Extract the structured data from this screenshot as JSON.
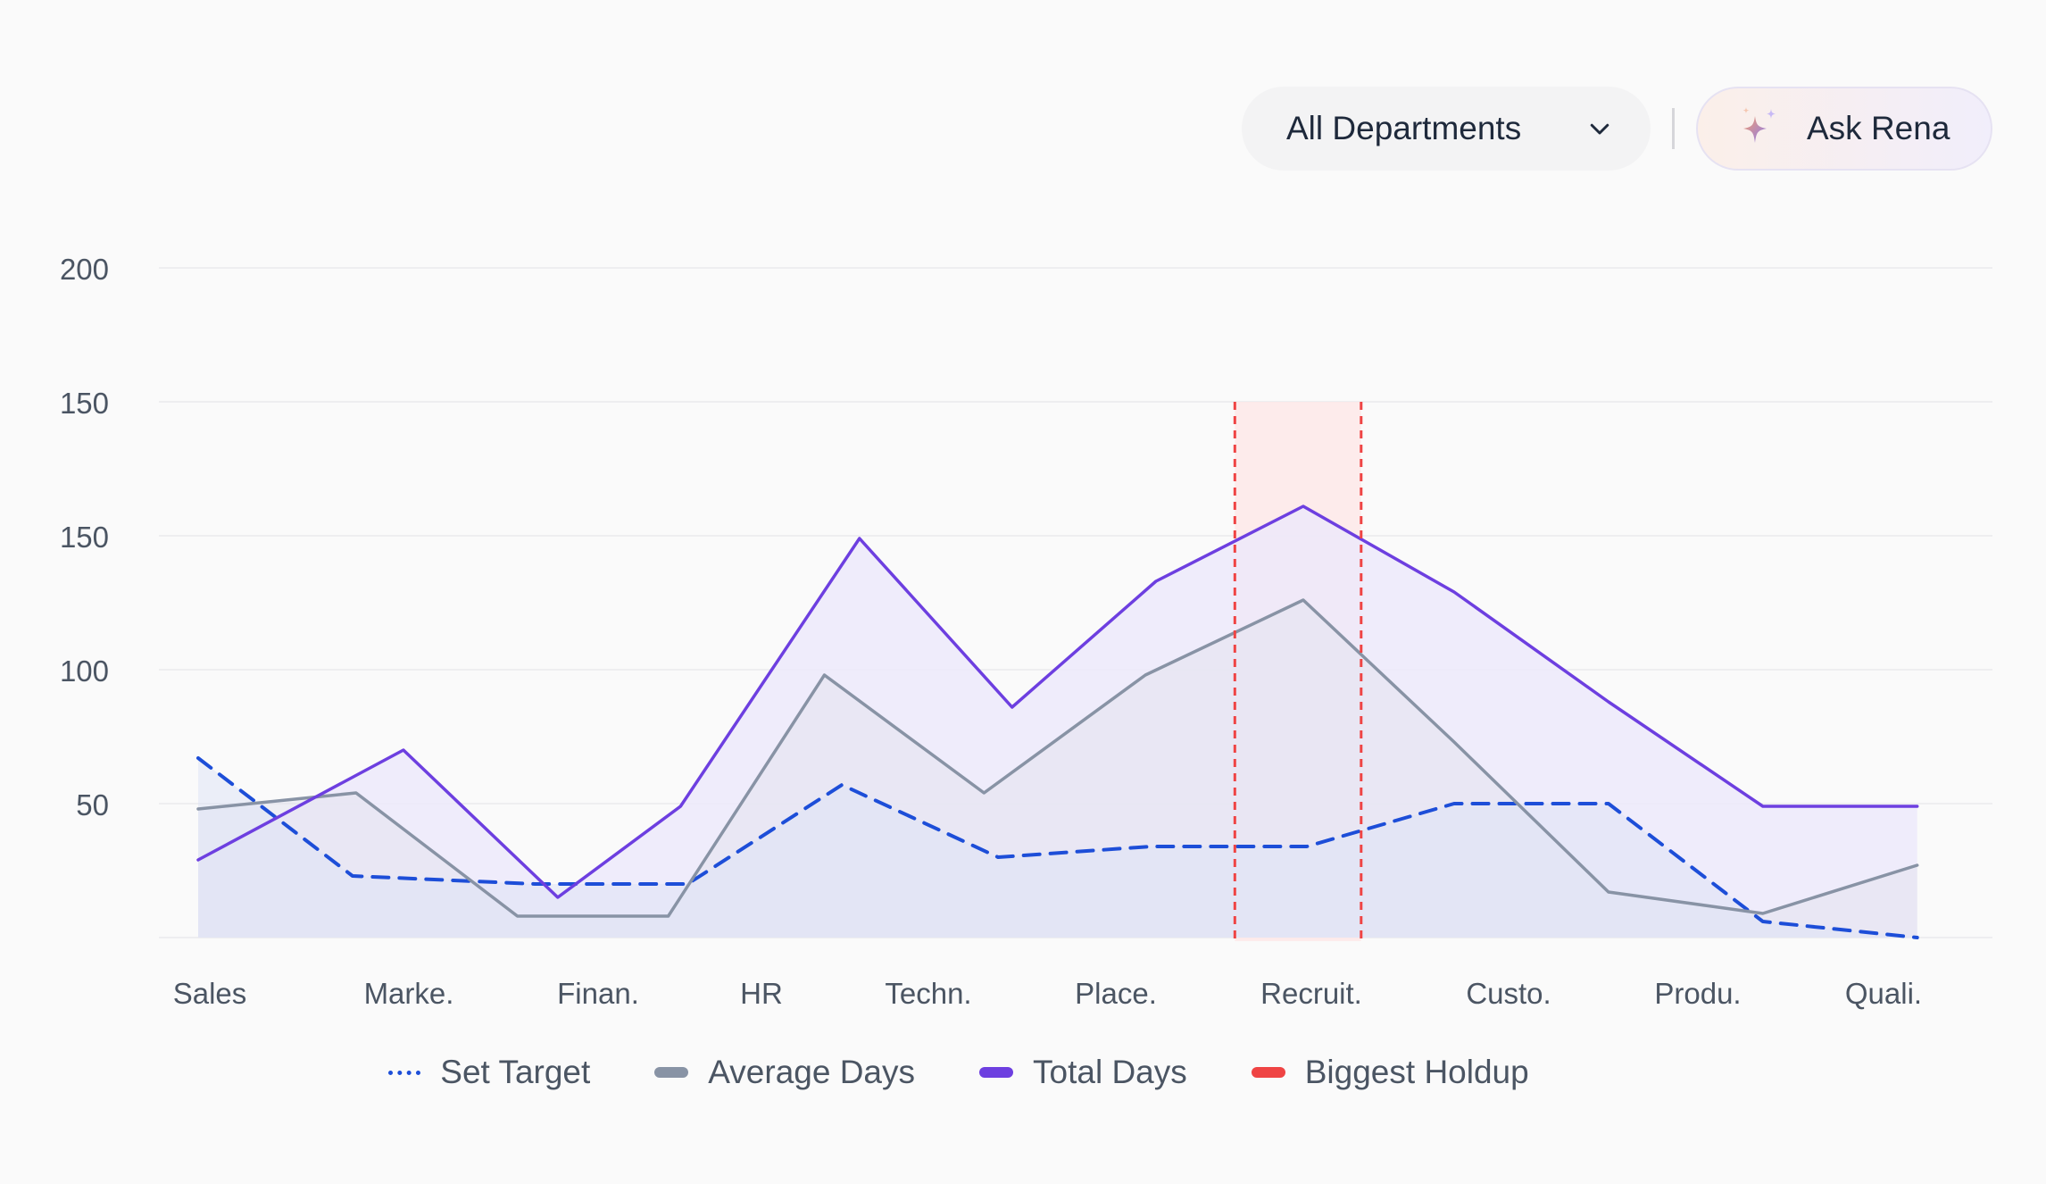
{
  "toolbar": {
    "department_select": {
      "value": "All Departments",
      "icon": "chevron-down-icon"
    },
    "ask_button": {
      "label": "Ask Rena",
      "icon": "sparkle-icon"
    }
  },
  "chart_data": {
    "type": "line",
    "title": "",
    "xlabel": "",
    "ylabel": "",
    "categories": [
      "Sales",
      "Marke.",
      "Finan.",
      "HR",
      "Techn.",
      "Place.",
      "Recruit.",
      "Custo.",
      "Produ.",
      "Quali."
    ],
    "y_tick_labels": [
      "200",
      "150",
      "150",
      "100",
      "50"
    ],
    "ylim": [
      0,
      250
    ],
    "grid": true,
    "legend_position": "bottom",
    "series": [
      {
        "name": "Set Target",
        "style": "dashed",
        "color": "#1d4ed8",
        "x": [
          0,
          0.88,
          1.92,
          2.79,
          3.67,
          4.56,
          5.43,
          6.32,
          7.16,
          8.04,
          8.92,
          9.8
        ],
        "values": [
          67,
          23,
          20,
          20,
          57,
          30,
          34,
          34,
          50,
          50,
          6,
          0
        ]
      },
      {
        "name": "Average Days",
        "style": "solid",
        "color": "#8893a5",
        "x": [
          0,
          0.9,
          1.82,
          2.68,
          3.57,
          4.48,
          5.4,
          6.3,
          7.16,
          8.04,
          8.92,
          9.8
        ],
        "values": [
          48,
          54,
          8,
          8,
          98,
          54,
          98,
          126,
          73,
          17,
          9,
          27
        ]
      },
      {
        "name": "Total Days",
        "style": "solid",
        "color": "#6d3fe0",
        "x": [
          0,
          1.17,
          2.05,
          2.75,
          3.77,
          4.64,
          5.46,
          6.3,
          7.16,
          8.04,
          8.92,
          9.8
        ],
        "values": [
          29,
          70,
          15,
          49,
          149,
          86,
          133,
          161,
          129,
          88,
          49,
          49
        ]
      }
    ],
    "highlight": {
      "name": "Biggest Holdup",
      "color": "#ef4444",
      "x_range": [
        5.91,
        6.63
      ],
      "y_top": 200
    }
  }
}
